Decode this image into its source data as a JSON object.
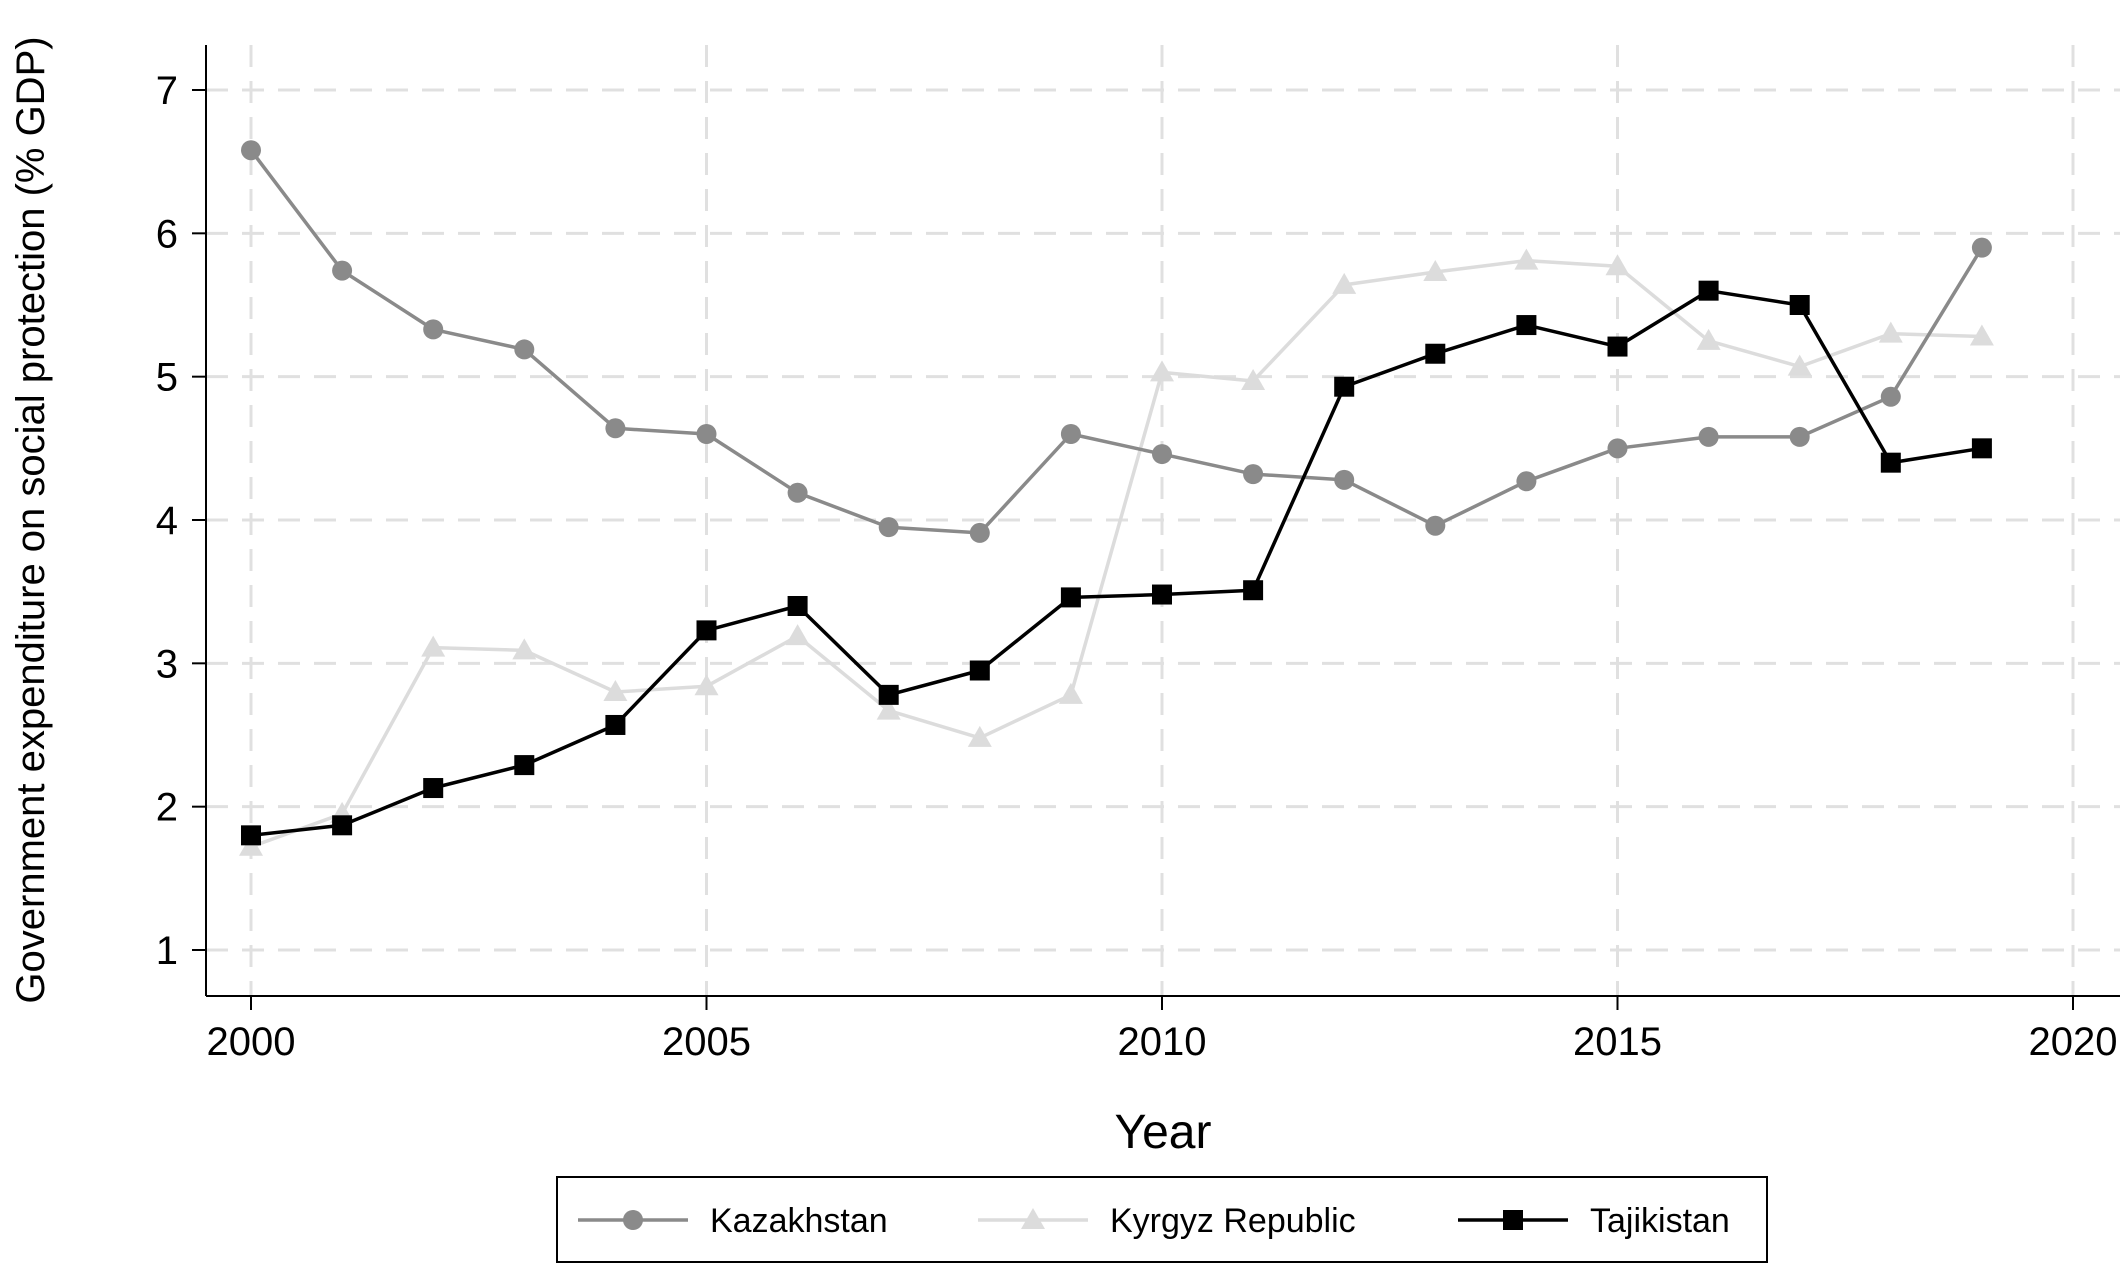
{
  "chart_data": {
    "type": "line",
    "xlabel": "Year",
    "ylabel": "Government expenditure on social protection (% GDP)",
    "xlim": [
      1999.5,
      2020.5
    ],
    "ylim": [
      0.7,
      7.3
    ],
    "xticks": [
      2000,
      2005,
      2010,
      2015,
      2020
    ],
    "yticks": [
      1,
      2,
      3,
      4,
      5,
      6,
      7
    ],
    "grid": true,
    "legend_position": "bottom",
    "x": [
      2000,
      2001,
      2002,
      2003,
      2004,
      2005,
      2006,
      2007,
      2008,
      2009,
      2010,
      2011,
      2012,
      2013,
      2014,
      2015,
      2016,
      2017,
      2018,
      2019
    ],
    "series": [
      {
        "name": "Kazakhstan",
        "color": "#8a8a8a",
        "marker": "circle",
        "values": [
          6.58,
          5.74,
          5.33,
          5.19,
          4.64,
          4.6,
          4.19,
          3.95,
          3.91,
          4.6,
          4.46,
          4.32,
          4.28,
          3.96,
          4.27,
          4.5,
          4.58,
          4.58,
          4.86,
          5.9
        ]
      },
      {
        "name": "Kyrgyz Republic",
        "color": "#dcdcdc",
        "marker": "triangle",
        "values": [
          1.72,
          1.95,
          3.11,
          3.09,
          2.8,
          2.84,
          3.19,
          2.67,
          2.48,
          2.78,
          5.03,
          4.97,
          5.64,
          5.73,
          5.81,
          5.77,
          5.25,
          5.07,
          5.3,
          5.28
        ]
      },
      {
        "name": "Tajikistan",
        "color": "#000000",
        "marker": "square",
        "values": [
          1.8,
          1.87,
          2.13,
          2.29,
          2.57,
          3.23,
          3.4,
          2.78,
          2.95,
          3.46,
          3.48,
          3.51,
          4.93,
          5.16,
          5.36,
          5.21,
          5.6,
          5.5,
          4.4,
          4.5
        ]
      }
    ]
  }
}
